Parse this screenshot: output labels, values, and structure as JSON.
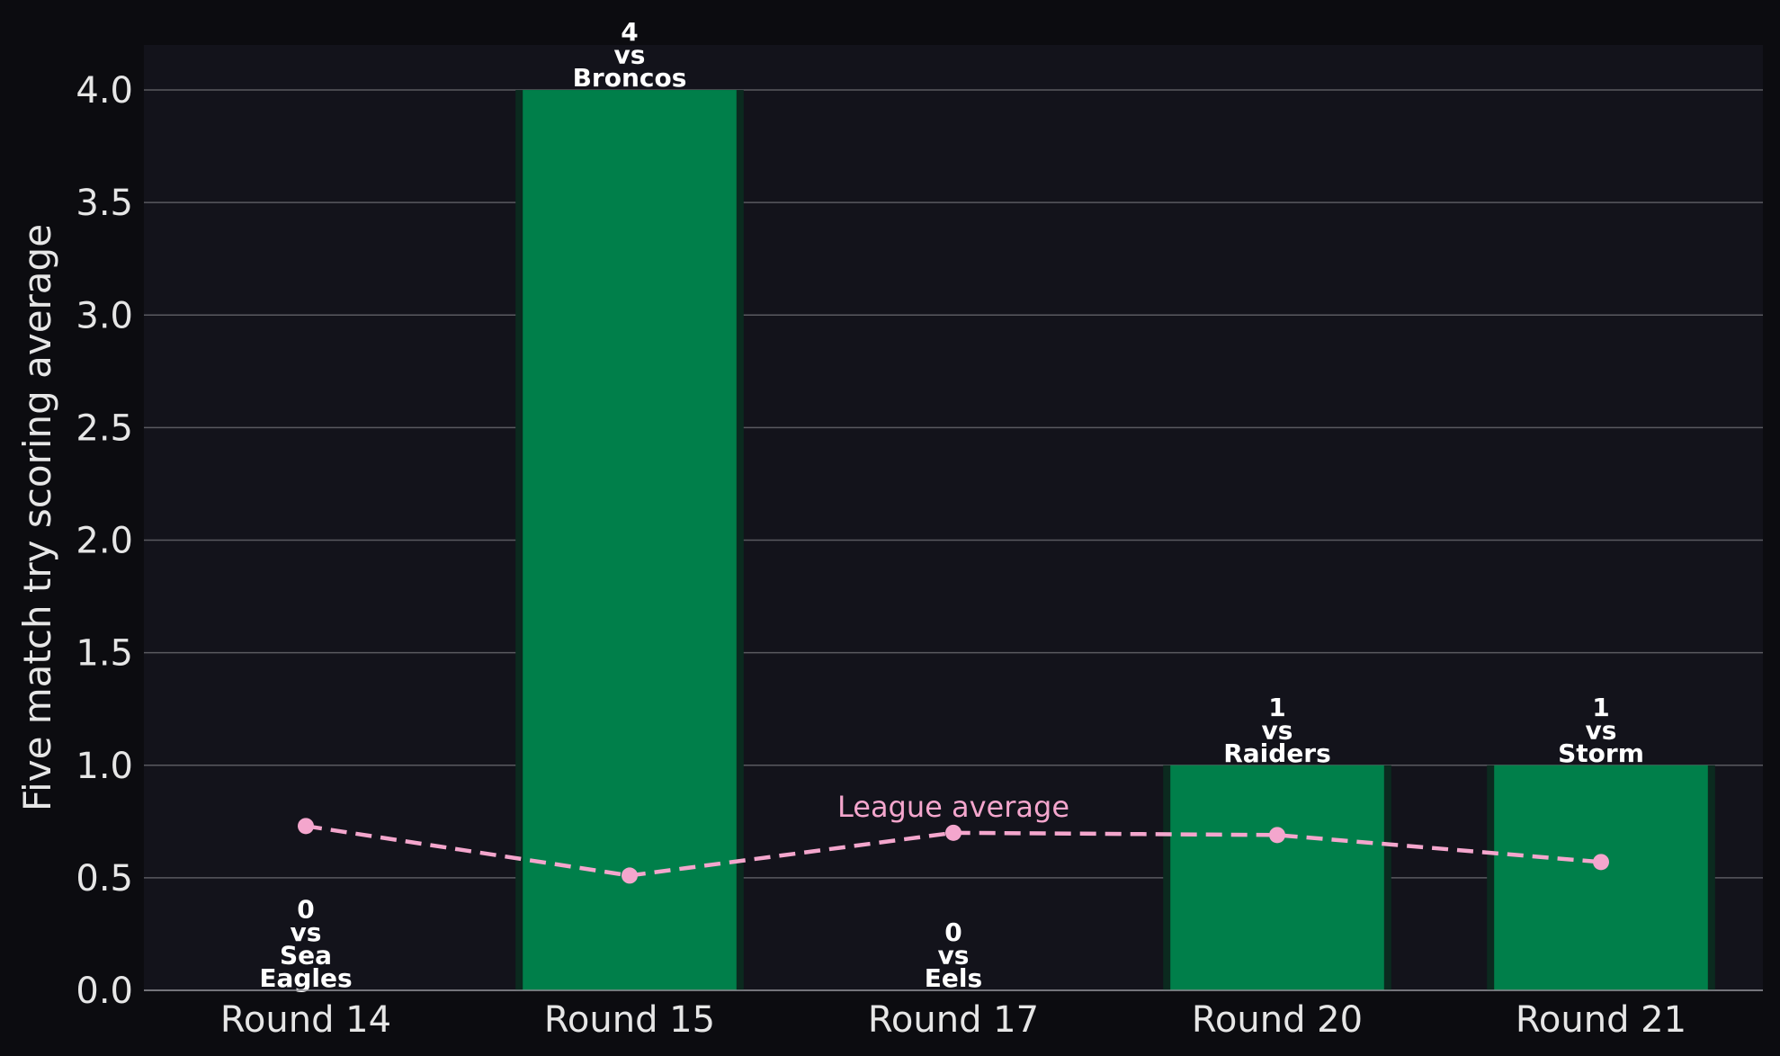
{
  "chart_data": {
    "type": "bar",
    "title": "",
    "xlabel": "",
    "ylabel": "Five match try scoring average",
    "ylim": [
      0,
      4.2
    ],
    "yticks": [
      "0.0",
      "0.5",
      "1.0",
      "1.5",
      "2.0",
      "2.5",
      "3.0",
      "3.5",
      "4.0"
    ],
    "grid": "horizontal",
    "categories": [
      "Round 14",
      "Round 15",
      "Round 17",
      "Round 20",
      "Round 21"
    ],
    "series": [
      {
        "values": [
          0,
          4,
          0,
          1,
          1
        ],
        "color": "#007f4a",
        "labels": [
          [
            "0",
            "vs",
            "Sea",
            "Eagles"
          ],
          [
            "4",
            "vs",
            "Broncos"
          ],
          [
            "0",
            "vs",
            "Eels"
          ],
          [
            "1",
            "vs",
            "Raiders"
          ],
          [
            "1",
            "vs",
            "Storm"
          ]
        ]
      },
      {
        "name": "League average",
        "type": "line",
        "style": "dashed",
        "values": [
          0.73,
          0.51,
          0.7,
          0.69,
          0.57
        ],
        "color": "#f4a6cd"
      }
    ],
    "colors": {
      "background": "#0c0c10",
      "plot_background": "#13131b",
      "grid": "#5a5a60",
      "text": "#e6e6e6"
    }
  }
}
